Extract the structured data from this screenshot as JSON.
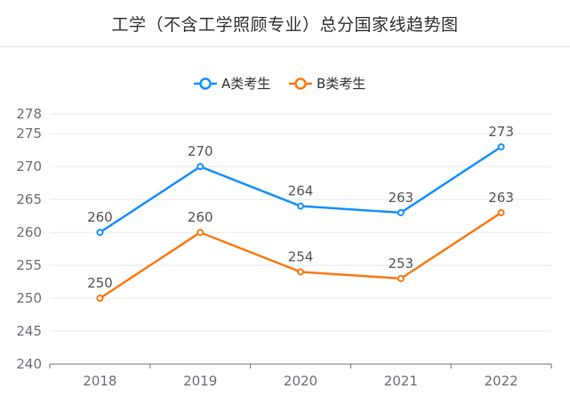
{
  "title": "工学（不含工学照顾专业）总分国家线趋势图",
  "chart_data": {
    "type": "line",
    "title": "工学（不含工学照顾专业）总分国家线趋势图",
    "categories": [
      "2018",
      "2019",
      "2020",
      "2021",
      "2022"
    ],
    "series": [
      {
        "name": "A类考生",
        "color": "#1890ff",
        "values": [
          260,
          270,
          264,
          263,
          273
        ]
      },
      {
        "name": "B类考生",
        "color": "#fa7a14",
        "values": [
          250,
          260,
          254,
          253,
          263
        ]
      }
    ],
    "yticks": [
      240,
      245,
      250,
      255,
      260,
      265,
      270,
      275,
      278
    ],
    "ylim": [
      240,
      278
    ],
    "grid": true,
    "legend": "top-center",
    "xlabel": "",
    "ylabel": ""
  }
}
